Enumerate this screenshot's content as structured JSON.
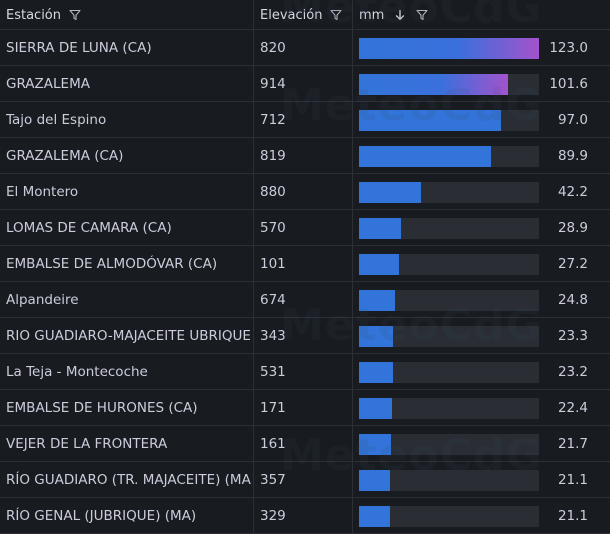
{
  "header": {
    "station_label": "Estación",
    "elevation_label": "Elevación",
    "mm_label": "mm"
  },
  "watermark": "MeteoCdG",
  "max_value": 123.0,
  "rows": [
    {
      "name": "SIERRA DE LUNA (CA)",
      "elevation": "820",
      "mm": 123.0,
      "mm_label": "123.0"
    },
    {
      "name": "GRAZALEMA",
      "elevation": "914",
      "mm": 101.6,
      "mm_label": "101.6"
    },
    {
      "name": "Tajo del Espino",
      "elevation": "712",
      "mm": 97.0,
      "mm_label": "97.0"
    },
    {
      "name": "GRAZALEMA (CA)",
      "elevation": "819",
      "mm": 89.9,
      "mm_label": "89.9"
    },
    {
      "name": "El Montero",
      "elevation": "880",
      "mm": 42.2,
      "mm_label": "42.2"
    },
    {
      "name": "LOMAS DE CAMARA (CA)",
      "elevation": "570",
      "mm": 28.9,
      "mm_label": "28.9"
    },
    {
      "name": "EMBALSE DE ALMODÓVAR (CA)",
      "elevation": "101",
      "mm": 27.2,
      "mm_label": "27.2"
    },
    {
      "name": "Alpandeire",
      "elevation": "674",
      "mm": 24.8,
      "mm_label": "24.8"
    },
    {
      "name": "RIO GUADIARO-MAJACEITE UBRIQUE",
      "elevation": "343",
      "mm": 23.3,
      "mm_label": "23.3"
    },
    {
      "name": "La Teja - Montecoche",
      "elevation": "531",
      "mm": 23.2,
      "mm_label": "23.2"
    },
    {
      "name": "EMBALSE DE HURONES (CA)",
      "elevation": "171",
      "mm": 22.4,
      "mm_label": "22.4"
    },
    {
      "name": "VEJER DE LA FRONTERA",
      "elevation": "161",
      "mm": 21.7,
      "mm_label": "21.7"
    },
    {
      "name": "RÍO GUADIARO (TR. MAJACEITE) (MA)",
      "elevation": "357",
      "mm": 21.1,
      "mm_label": "21.1"
    },
    {
      "name": "RÍO GENAL (JUBRIQUE) (MA)",
      "elevation": "329",
      "mm": 21.1,
      "mm_label": "21.1"
    }
  ]
}
